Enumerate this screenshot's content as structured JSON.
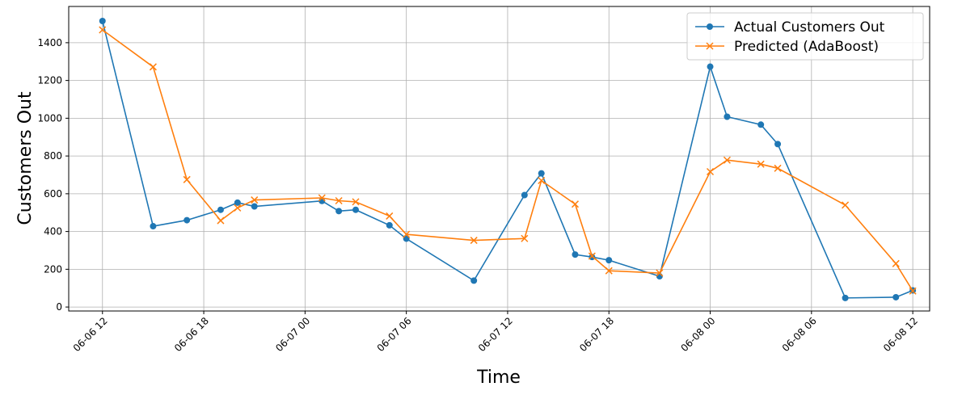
{
  "chart_data": {
    "type": "line",
    "xlabel": "Time",
    "ylabel": "Customers Out",
    "x": [
      "06-06 12",
      "06-06 15",
      "06-06 17",
      "06-06 19",
      "06-06 20",
      "06-06 21",
      "06-07 01",
      "06-07 02",
      "06-07 03",
      "06-07 05",
      "06-07 06",
      "06-07 10",
      "06-07 13",
      "06-07 14",
      "06-07 16",
      "06-07 17",
      "06-07 18",
      "06-07 21",
      "06-08 00",
      "06-08 01",
      "06-08 03",
      "06-08 04",
      "06-08 08",
      "06-08 11",
      "06-08 12"
    ],
    "series": [
      {
        "name": "Actual Customers Out",
        "color": "#1f77b4",
        "marker": "o",
        "values": [
          1515,
          428,
          460,
          515,
          553,
          533,
          562,
          508,
          515,
          433,
          362,
          140,
          593,
          708,
          278,
          265,
          248,
          163,
          1273,
          1008,
          966,
          863,
          48,
          52,
          88
        ]
      },
      {
        "name": "Predicted (AdaBoost)",
        "color": "#ff7f0e",
        "marker": "x",
        "values": [
          1468,
          1272,
          675,
          458,
          525,
          567,
          578,
          563,
          557,
          482,
          385,
          353,
          363,
          670,
          545,
          270,
          192,
          180,
          717,
          778,
          757,
          735,
          540,
          230,
          85
        ]
      }
    ],
    "xlim": [
      "06-06 10",
      "06-08 13"
    ],
    "xticks": [
      "06-06 12",
      "06-06 18",
      "06-07 00",
      "06-07 06",
      "06-07 12",
      "06-07 18",
      "06-08 00",
      "06-08 06",
      "06-08 12"
    ],
    "ylim": [
      -21,
      1592
    ],
    "yticks": [
      0,
      200,
      400,
      600,
      800,
      1000,
      1200,
      1400
    ],
    "grid": true,
    "legend": "upper right"
  }
}
